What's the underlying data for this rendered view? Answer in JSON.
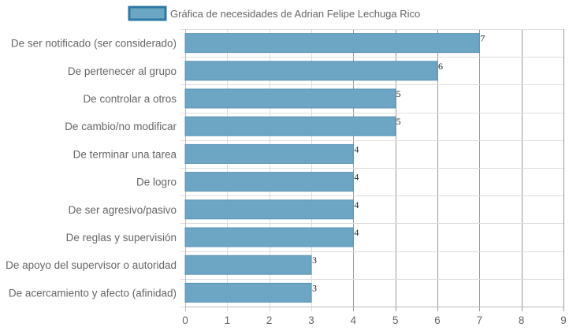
{
  "chart_data": {
    "type": "bar",
    "orientation": "horizontal",
    "categories": [
      "De ser notificado (ser considerado)",
      "De pertenecer al grupo",
      "De controlar a otros",
      "De cambio/no modificar",
      "De terminar una tarea",
      "De logro",
      "De ser agresivo/pasivo",
      "De reglas y supervisión",
      "De apoyo del supervisor o autoridad",
      "De acercamiento y afecto (afinidad)"
    ],
    "series": [
      {
        "name": "Gráfica de necesidades de Adrian Felipe Lechuga Rico",
        "values": [
          7,
          6,
          5,
          5,
          4,
          4,
          4,
          4,
          3,
          3
        ]
      }
    ],
    "xlim": [
      0,
      9
    ],
    "x_ticks": [
      "0",
      "1",
      "2",
      "3",
      "4",
      "5",
      "6",
      "7",
      "8",
      "9"
    ],
    "grid": true,
    "legend_position": "top",
    "data_labels": true,
    "colors": {
      "bar_fill": "#6ca6c4",
      "bar_stroke": "#5b93b3",
      "legend_stroke": "#2d79a4",
      "grid": "#dddddd",
      "grid_major": "#999999"
    }
  }
}
